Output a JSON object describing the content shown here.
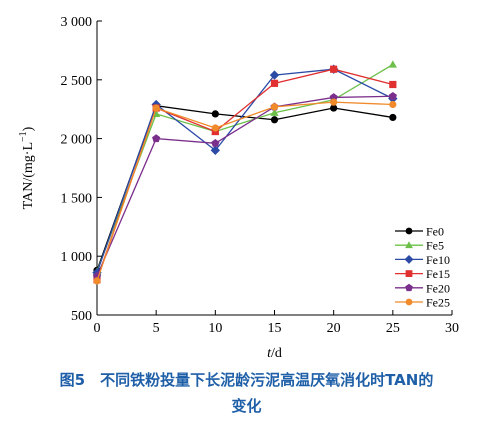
{
  "caption": {
    "line1": "图5　不同铁粉投量下长泥龄污泥高温厌氧消化时TAN的",
    "line2": "变化"
  },
  "chart_data": {
    "type": "line",
    "xlabel_var": "t",
    "xlabel_unit": "/d",
    "ylabel": "TAN/(mg·L",
    "ylabel_sup": "−1",
    "ylabel_end": ")",
    "xlim": [
      0,
      30
    ],
    "ylim": [
      500,
      3000
    ],
    "xticks": [
      0,
      5,
      10,
      15,
      20,
      25,
      30
    ],
    "yticks": [
      500,
      1000,
      1500,
      2000,
      2500,
      3000
    ],
    "ytick_labels": [
      "500",
      "1 000",
      "1 500",
      "2 000",
      "2 500",
      "3 000"
    ],
    "x": [
      0,
      5,
      10,
      15,
      20,
      25
    ],
    "legend_position": "right",
    "series": [
      {
        "name": "Fe0",
        "color": "#000000",
        "marker": "circle",
        "values": [
          880,
          2280,
          2210,
          2160,
          2260,
          2180
        ]
      },
      {
        "name": "Fe5",
        "color": "#6cc04a",
        "marker": "triangle",
        "values": [
          870,
          2210,
          2060,
          2220,
          2330,
          2630
        ]
      },
      {
        "name": "Fe10",
        "color": "#2b4aa6",
        "marker": "diamond",
        "values": [
          860,
          2290,
          1900,
          2540,
          2590,
          2340
        ]
      },
      {
        "name": "Fe15",
        "color": "#e03030",
        "marker": "square",
        "values": [
          800,
          2260,
          2060,
          2470,
          2590,
          2460
        ]
      },
      {
        "name": "Fe20",
        "color": "#7b2f8c",
        "marker": "pentagon",
        "values": [
          830,
          2000,
          1960,
          2270,
          2350,
          2360
        ]
      },
      {
        "name": "Fe25",
        "color": "#f08a2a",
        "marker": "circle",
        "values": [
          790,
          2260,
          2090,
          2270,
          2310,
          2290
        ]
      }
    ]
  }
}
